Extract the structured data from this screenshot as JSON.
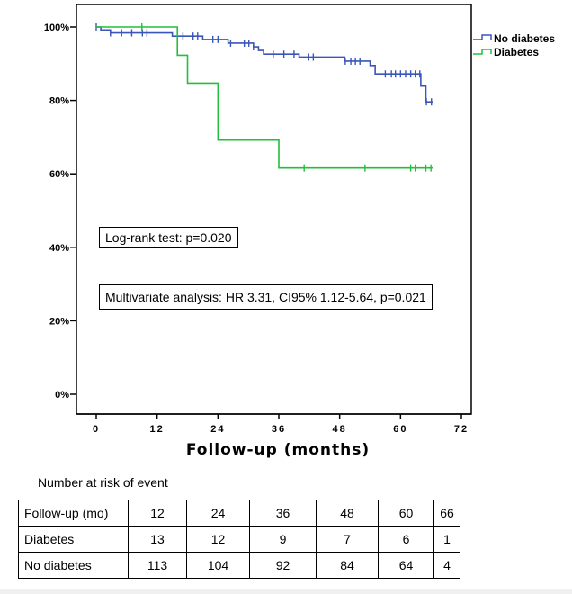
{
  "chart_data": {
    "type": "line",
    "subtype": "kaplan-meier",
    "xlabel": "Follow-up (months)",
    "ylabel": "",
    "xlim": [
      0,
      72
    ],
    "ylim": [
      0,
      100
    ],
    "x_ticks": [
      "0",
      "12",
      "24",
      "36",
      "48",
      "60",
      "72"
    ],
    "y_ticks": [
      "0%",
      "20%",
      "40%",
      "60%",
      "80%",
      "100%"
    ],
    "grid": false,
    "legend_position": "top-right outside",
    "series": [
      {
        "name": "No diabetes",
        "color": "#3a56b8",
        "steps": [
          [
            0,
            100
          ],
          [
            0.9,
            99.2
          ],
          [
            2.8,
            98.4
          ],
          [
            15,
            97.5
          ],
          [
            21,
            96.6
          ],
          [
            26,
            95.6
          ],
          [
            31,
            94.6
          ],
          [
            32,
            93.6
          ],
          [
            33,
            92.6
          ],
          [
            40,
            91.8
          ],
          [
            49,
            90.7
          ],
          [
            54,
            89.5
          ],
          [
            55,
            87.2
          ],
          [
            64,
            83.9
          ],
          [
            65,
            79.6
          ]
        ],
        "end": 66.4,
        "censored": [
          0,
          2.8,
          5,
          7,
          9.1,
          10,
          17.1,
          19.1,
          20,
          23,
          24,
          26.5,
          29.2,
          30.1,
          31,
          34.9,
          37,
          39,
          41.9,
          42.8,
          49.1,
          50.2,
          51.1,
          52,
          57,
          58.2,
          59,
          60,
          61,
          62,
          62.9,
          63.8,
          65.1,
          66.1
        ]
      },
      {
        "name": "Diabetes",
        "color": "#22c03a",
        "steps": [
          [
            0,
            100
          ],
          [
            16,
            92.3
          ],
          [
            18,
            84.7
          ],
          [
            24,
            69.2
          ],
          [
            36,
            61.6
          ]
        ],
        "end": 66.4,
        "censored": [
          9,
          41,
          53,
          62,
          62.9,
          65,
          66
        ]
      }
    ],
    "annotations": [
      "Log-rank test: p=0.020",
      "Multivariate analysis: HR 3.31, CI95% 1.12-5.64, p=0.021"
    ]
  },
  "risk_table": {
    "title": "Number at risk of event",
    "rows": [
      [
        "Follow-up (mo)",
        "12",
        "24",
        "36",
        "48",
        "60",
        "66"
      ],
      [
        "Diabetes",
        "13",
        "12",
        "9",
        "7",
        "6",
        "1"
      ],
      [
        "No diabetes",
        "113",
        "104",
        "92",
        "84",
        "64",
        "4"
      ]
    ]
  }
}
